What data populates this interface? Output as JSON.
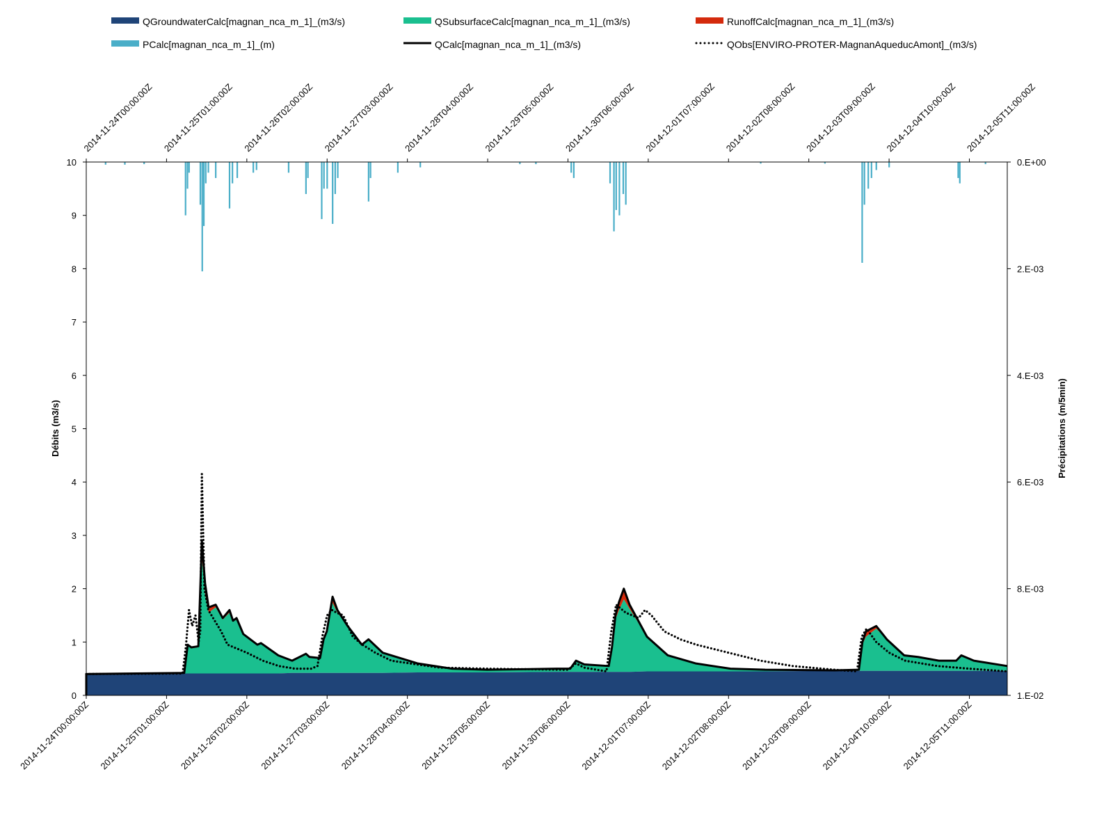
{
  "chart_data": {
    "type": "area",
    "title": "",
    "xlabel": "",
    "ylabel": "Débits (m3/s)",
    "y2label": "Précipitations (m/5min)",
    "ylim": [
      0,
      10
    ],
    "y2lim": [
      0,
      0.01
    ],
    "y2_inverted": true,
    "x_unit": "hours since 2014-11-24T00:00:00Z",
    "xlim": [
      0,
      286.8
    ],
    "y_ticks": [
      "0",
      "1",
      "2",
      "3",
      "4",
      "5",
      "6",
      "7",
      "8",
      "9",
      "10"
    ],
    "y2_ticks": [
      "0.E+00",
      "2.E-03",
      "4.E-03",
      "6.E-03",
      "8.E-03",
      "1.E-02"
    ],
    "x_ticks": [
      0,
      25,
      50,
      75,
      100,
      125,
      150,
      175,
      200,
      225,
      250,
      275
    ],
    "x_tick_labels": [
      "2014-11-24T00:00:00Z",
      "2014-11-25T01:00:00Z",
      "2014-11-26T02:00:00Z",
      "2014-11-27T03:00:00Z",
      "2014-11-28T04:00:00Z",
      "2014-11-29T05:00:00Z",
      "2014-11-30T06:00:00Z",
      "2014-12-01T07:00:00Z",
      "2014-12-02T08:00:00Z",
      "2014-12-03T09:00:00Z",
      "2014-12-04T10:00:00Z",
      "2014-12-05T11:00:00Z"
    ],
    "legend_position": "top",
    "legend": [
      {
        "name": "QGroundwaterCalc[magnan_nca_m_1]_(m3/s)",
        "color": "#1f4478",
        "kind": "area"
      },
      {
        "name": "QSubsurfaceCalc[magnan_nca_m_1]_(m3/s)",
        "color": "#1abf8f",
        "kind": "area"
      },
      {
        "name": "RunoffCalc[magnan_nca_m_1]_(m3/s)",
        "color": "#d42a0c",
        "kind": "area"
      },
      {
        "name": "PCalc[magnan_nca_m_1]_(m)",
        "color": "#4aaec8",
        "kind": "bar"
      },
      {
        "name": "QCalc[magnan_nca_m_1]_(m3/s)",
        "color": "#000000",
        "kind": "line"
      },
      {
        "name": "QObs[ENVIRO-PROTER-MagnanAqueducAmont]_(m3/s)",
        "color": "#000000",
        "kind": "dots"
      }
    ],
    "x": [
      0,
      30.5,
      31.6,
      32.7,
      34.9,
      36.0,
      37.0,
      38.1,
      40.3,
      42.5,
      44.6,
      45.7,
      46.8,
      48.9,
      53.3,
      54.4,
      59.8,
      64.1,
      68.4,
      69.5,
      72.8,
      73.9,
      74.9,
      76.7,
      78.2,
      81.4,
      85.8,
      87.9,
      92.3,
      103.1,
      113.9,
      124.8,
      146.4,
      150.7,
      152.5,
      155.1,
      162.7,
      163.7,
      164.8,
      165.9,
      167.4,
      169.2,
      174.6,
      181.1,
      189.7,
      200.6,
      211.4,
      233.1,
      240.6,
      241.7,
      242.8,
      246.0,
      249.3,
      254.7,
      259.0,
      265.5,
      270.9,
      272.5,
      276.4,
      286.8
    ],
    "series": [
      {
        "name": "QGroundwaterCalc[magnan_nca_m_1]_(m3/s)",
        "values": [
          0.4,
          0.41,
          0.41,
          0.41,
          0.41,
          0.41,
          0.41,
          0.41,
          0.41,
          0.41,
          0.41,
          0.41,
          0.41,
          0.41,
          0.41,
          0.41,
          0.41,
          0.42,
          0.42,
          0.42,
          0.42,
          0.42,
          0.42,
          0.42,
          0.42,
          0.42,
          0.42,
          0.42,
          0.42,
          0.43,
          0.43,
          0.43,
          0.44,
          0.44,
          0.44,
          0.44,
          0.44,
          0.44,
          0.44,
          0.44,
          0.44,
          0.44,
          0.45,
          0.45,
          0.45,
          0.45,
          0.45,
          0.46,
          0.46,
          0.46,
          0.46,
          0.46,
          0.46,
          0.46,
          0.46,
          0.46,
          0.46,
          0.46,
          0.46,
          0.46
        ]
      },
      {
        "name": "QSubsurfaceCalc[magnan_nca_m_1]_(m3/s)",
        "values": [
          0,
          0.01,
          0.54,
          0.47,
          0.49,
          2.14,
          1.49,
          1.14,
          1.24,
          1.01,
          1.14,
          0.97,
          1.01,
          0.74,
          0.54,
          0.57,
          0.34,
          0.23,
          0.36,
          0.3,
          0.28,
          0.61,
          0.75,
          1.31,
          1.13,
          0.88,
          0.53,
          0.63,
          0.38,
          0.17,
          0.07,
          0.05,
          0.06,
          0.06,
          0.21,
          0.14,
          0.11,
          0.43,
          0.98,
          1.16,
          1.36,
          1.18,
          0.65,
          0.3,
          0.15,
          0.05,
          0.03,
          0.01,
          0.02,
          0.49,
          0.64,
          0.79,
          0.59,
          0.29,
          0.26,
          0.19,
          0.19,
          0.29,
          0.19,
          0.09
        ]
      },
      {
        "name": "RunoffCalc[magnan_nca_m_1]_(m3/s)",
        "values": [
          0,
          0,
          0,
          0.02,
          0.02,
          0.35,
          0.2,
          0.1,
          0.05,
          0.03,
          0.05,
          0.02,
          0.03,
          0,
          0,
          0,
          0,
          0,
          0,
          0,
          0,
          0.02,
          0.03,
          0.12,
          0.05,
          0,
          0,
          0,
          0,
          0,
          0,
          0,
          0,
          0,
          0,
          0,
          0,
          0.03,
          0.08,
          0.15,
          0.2,
          0.08,
          0,
          0,
          0,
          0,
          0,
          0,
          0,
          0.05,
          0.1,
          0.05,
          0,
          0,
          0,
          0,
          0,
          0,
          0,
          0
        ]
      },
      {
        "name": "QCalc[magnan_nca_m_1]_(m3/s)",
        "values": [
          0.4,
          0.42,
          0.95,
          0.9,
          0.92,
          2.9,
          2.1,
          1.65,
          1.7,
          1.45,
          1.6,
          1.4,
          1.45,
          1.15,
          0.95,
          0.98,
          0.75,
          0.65,
          0.78,
          0.72,
          0.7,
          1.05,
          1.2,
          1.85,
          1.6,
          1.3,
          0.95,
          1.05,
          0.8,
          0.6,
          0.5,
          0.48,
          0.5,
          0.5,
          0.65,
          0.58,
          0.55,
          0.9,
          1.5,
          1.75,
          2.0,
          1.7,
          1.1,
          0.75,
          0.6,
          0.5,
          0.48,
          0.47,
          0.48,
          1.0,
          1.2,
          1.3,
          1.05,
          0.75,
          0.72,
          0.65,
          0.65,
          0.75,
          0.65,
          0.55
        ]
      }
    ],
    "qobs": {
      "name": "QObs[ENVIRO-PROTER-MagnanAqueducAmont]_(m3/s)",
      "x": [
        0,
        30,
        31,
        32,
        33,
        34,
        35,
        35.5,
        36.0,
        36.8,
        38,
        40,
        42,
        44,
        46,
        50,
        55,
        60,
        65,
        70,
        72,
        73.5,
        75,
        76.5,
        78,
        80,
        83,
        86,
        90,
        95,
        103,
        110,
        125,
        150,
        152.5,
        155,
        162,
        163.5,
        165,
        168,
        172,
        174,
        176,
        180,
        185,
        190,
        200,
        210,
        220,
        233,
        240,
        241.5,
        243,
        246,
        250,
        255,
        265,
        275,
        286.8
      ],
      "values": [
        0.4,
        0.41,
        0.9,
        1.6,
        1.3,
        1.5,
        1.0,
        1.2,
        4.15,
        2.0,
        1.6,
        1.4,
        1.2,
        0.95,
        0.9,
        0.8,
        0.65,
        0.55,
        0.5,
        0.5,
        0.55,
        1.1,
        1.5,
        1.6,
        1.55,
        1.5,
        1.1,
        0.95,
        0.8,
        0.65,
        0.58,
        0.52,
        0.5,
        0.48,
        0.6,
        0.52,
        0.45,
        1.2,
        1.7,
        1.55,
        1.45,
        1.6,
        1.5,
        1.2,
        1.05,
        0.95,
        0.8,
        0.65,
        0.55,
        0.48,
        0.45,
        1.1,
        1.25,
        1.0,
        0.8,
        0.65,
        0.55,
        0.5,
        0.45
      ]
    },
    "pcalc": {
      "name": "PCalc[magnan_nca_m_1]_(m)",
      "x": [
        6,
        12,
        18,
        30.9,
        31.5,
        32,
        35.5,
        36.1,
        36.6,
        37.2,
        38,
        40.3,
        44.6,
        45.5,
        47,
        52,
        53,
        63,
        68.4,
        69,
        73.3,
        74,
        75,
        76.7,
        77.5,
        78.3,
        87.9,
        88.5,
        97,
        104,
        135,
        140,
        151,
        151.8,
        163.1,
        164.3,
        165,
        166,
        167.2,
        168,
        210,
        230,
        241.6,
        242.3,
        243.5,
        244.5,
        246,
        250,
        271.5,
        272,
        280
      ],
      "values": [
        5e-05,
        5e-05,
        4e-05,
        0.001,
        0.0005,
        0.0002,
        0.0008,
        0.00205,
        0.0012,
        0.0004,
        0.0002,
        0.0003,
        0.00087,
        0.0004,
        0.0003,
        0.0002,
        0.00015,
        0.0002,
        0.0006,
        0.0003,
        0.00107,
        0.0005,
        0.0005,
        0.00116,
        0.0006,
        0.0003,
        0.00074,
        0.0003,
        0.0002,
        0.0001,
        4e-05,
        4e-05,
        0.0002,
        0.0003,
        0.0004,
        0.0013,
        0.0009,
        0.001,
        0.0006,
        0.0008,
        3e-05,
        3e-05,
        0.00189,
        0.0008,
        0.0005,
        0.0003,
        0.00015,
        0.0001,
        0.0003,
        0.0004,
        4e-05
      ]
    }
  }
}
